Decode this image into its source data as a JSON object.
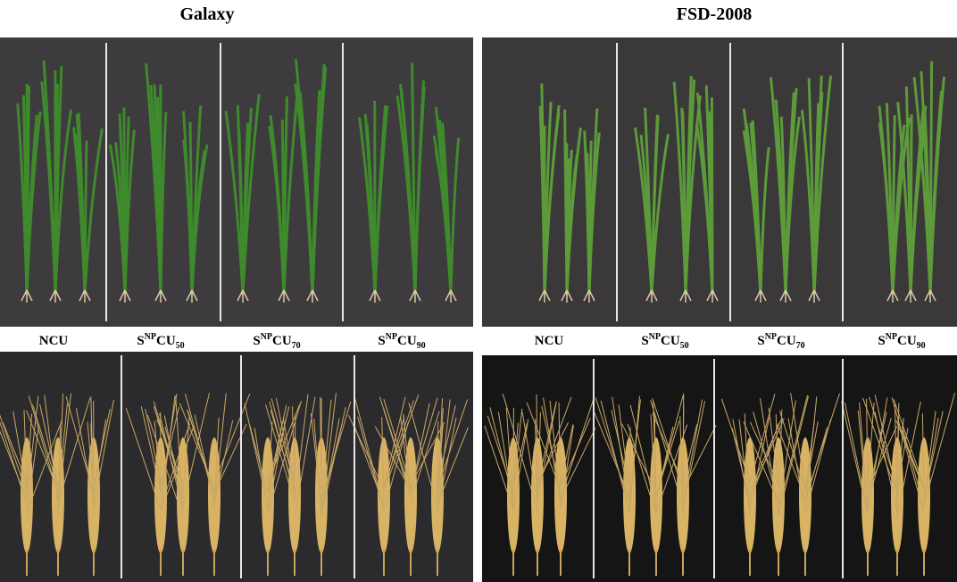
{
  "panels": [
    {
      "title": "Galaxy",
      "labels": [
        {
          "main": "NCU"
        },
        {
          "main": "S",
          "sup": "NP",
          "rest": "CU",
          "sub": "50"
        },
        {
          "main": "S",
          "sup": "NP",
          "rest": "CU",
          "sub": "70"
        },
        {
          "main": "S",
          "sup": "NP",
          "rest": "CU",
          "sub": "90"
        }
      ]
    },
    {
      "title": "FSD-2008",
      "labels": [
        {
          "main": "NCU"
        },
        {
          "main": "S",
          "sup": "NP",
          "rest": "CU",
          "sub": "50"
        },
        {
          "main": "S",
          "sup": "NP",
          "rest": "CU",
          "sub": "70"
        },
        {
          "main": "S",
          "sup": "NP",
          "rest": "CU",
          "sub": "90"
        }
      ]
    }
  ]
}
